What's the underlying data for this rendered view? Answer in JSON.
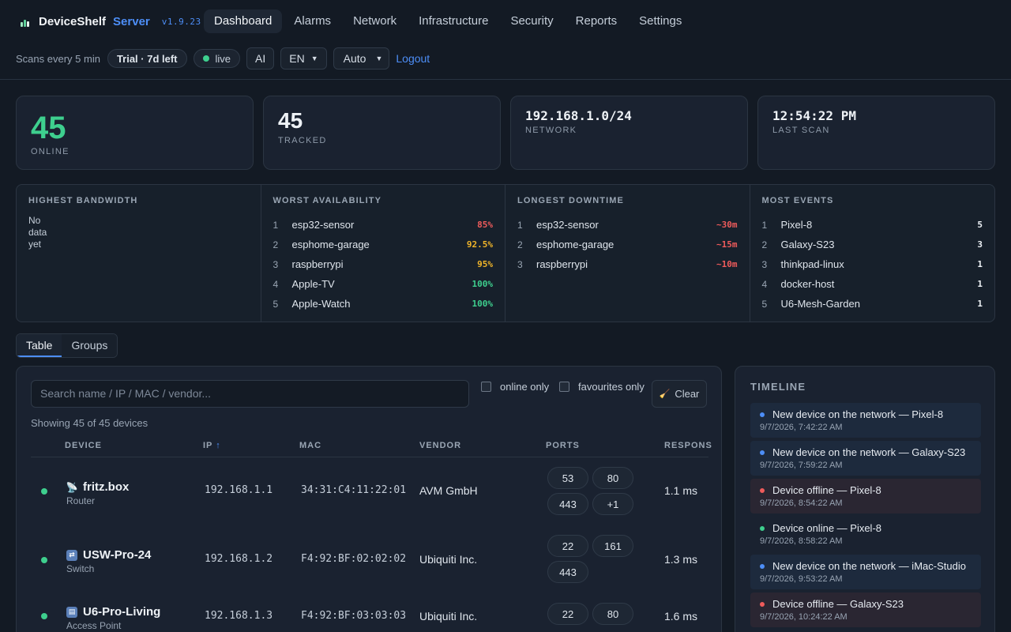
{
  "brand": {
    "name": "DeviceShelf",
    "product": "Server",
    "version": "v1.9.23"
  },
  "nav": [
    "Dashboard",
    "Alarms",
    "Network",
    "Infrastructure",
    "Security",
    "Reports",
    "Settings"
  ],
  "subbar": {
    "scan_note": "Scans every 5 min",
    "trial": "Trial · 7d left",
    "live": "live",
    "ai": "AI",
    "language": "EN",
    "theme": "Auto",
    "logout": "Logout"
  },
  "stats": {
    "online": {
      "value": "45",
      "label": "ONLINE"
    },
    "tracked": {
      "value": "45",
      "label": "TRACKED"
    },
    "network": {
      "value": "192.168.1.0/24",
      "label": "NETWORK"
    },
    "last_scan": {
      "value": "12:54:22 PM",
      "label": "LAST SCAN"
    }
  },
  "boards": {
    "bandwidth": {
      "title": "HIGHEST BANDWIDTH",
      "empty": "No data yet"
    },
    "availability": {
      "title": "WORST AVAILABILITY",
      "rows": [
        {
          "rank": "1",
          "name": "esp32-sensor",
          "value": "85%",
          "tone": "red"
        },
        {
          "rank": "2",
          "name": "esphome-garage",
          "value": "92.5%",
          "tone": "amber"
        },
        {
          "rank": "3",
          "name": "raspberrypi",
          "value": "95%",
          "tone": "amber"
        },
        {
          "rank": "4",
          "name": "Apple-TV",
          "value": "100%",
          "tone": "green"
        },
        {
          "rank": "5",
          "name": "Apple-Watch",
          "value": "100%",
          "tone": "green"
        }
      ]
    },
    "downtime": {
      "title": "LONGEST DOWNTIME",
      "rows": [
        {
          "rank": "1",
          "name": "esp32-sensor",
          "value": "~30m",
          "tone": "red"
        },
        {
          "rank": "2",
          "name": "esphome-garage",
          "value": "~15m",
          "tone": "red"
        },
        {
          "rank": "3",
          "name": "raspberrypi",
          "value": "~10m",
          "tone": "red"
        }
      ]
    },
    "events": {
      "title": "MOST EVENTS",
      "rows": [
        {
          "rank": "1",
          "name": "Pixel-8",
          "value": "5",
          "tone": "white"
        },
        {
          "rank": "2",
          "name": "Galaxy-S23",
          "value": "3",
          "tone": "white"
        },
        {
          "rank": "3",
          "name": "thinkpad-linux",
          "value": "1",
          "tone": "white"
        },
        {
          "rank": "4",
          "name": "docker-host",
          "value": "1",
          "tone": "white"
        },
        {
          "rank": "5",
          "name": "U6-Mesh-Garden",
          "value": "1",
          "tone": "white"
        }
      ]
    }
  },
  "view_tabs": [
    "Table",
    "Groups"
  ],
  "devices": {
    "search_placeholder": "Search name / IP / MAC / vendor...",
    "filter_online": "online only",
    "filter_favourites": "favourites only",
    "clear": "Clear",
    "showing": "Showing 45 of 45 devices",
    "columns": {
      "device": "DEVICE",
      "ip": "IP",
      "ip_sort": "↑",
      "mac": "MAC",
      "vendor": "VENDOR",
      "ports": "PORTS",
      "response": "RESPONS"
    },
    "rows": [
      {
        "name": "fritz.box",
        "type": "Router",
        "icon": "router-icon",
        "ip": "192.168.1.1",
        "mac": "34:31:C4:11:22:01",
        "vendor": "AVM GmbH",
        "ports": [
          "53",
          "80",
          "443",
          "+1"
        ],
        "response": "1.1 ms",
        "status": "online"
      },
      {
        "name": "USW-Pro-24",
        "type": "Switch",
        "icon": "switch-icon",
        "ip": "192.168.1.2",
        "mac": "F4:92:BF:02:02:02",
        "vendor": "Ubiquiti Inc.",
        "ports": [
          "22",
          "161",
          "443"
        ],
        "response": "1.3 ms",
        "status": "online"
      },
      {
        "name": "U6-Pro-Living",
        "type": "Access Point",
        "icon": "access-point-icon",
        "ip": "192.168.1.3",
        "mac": "F4:92:BF:03:03:03",
        "vendor": "Ubiquiti Inc.",
        "ports": [
          "22",
          "80"
        ],
        "response": "1.6 ms",
        "status": "online"
      }
    ]
  },
  "timeline": {
    "title": "TIMELINE",
    "items": [
      {
        "text": "New device on the network — Pixel-8",
        "time": "9/7/2026, 7:42:22 AM",
        "kind": "new"
      },
      {
        "text": "New device on the network — Galaxy-S23",
        "time": "9/7/2026, 7:59:22 AM",
        "kind": "new"
      },
      {
        "text": "Device offline — Pixel-8",
        "time": "9/7/2026, 8:54:22 AM",
        "kind": "off"
      },
      {
        "text": "Device online — Pixel-8",
        "time": "9/7/2026, 8:58:22 AM",
        "kind": "on"
      },
      {
        "text": "New device on the network — iMac-Studio",
        "time": "9/7/2026, 9:53:22 AM",
        "kind": "new"
      },
      {
        "text": "Device offline — Galaxy-S23",
        "time": "9/7/2026, 10:24:22 AM",
        "kind": "off"
      }
    ]
  },
  "colors": {
    "accent": "#4d8ef7",
    "online": "#3ecf8e",
    "warning": "#f0b429",
    "danger": "#ef5b5b",
    "background": "#131a24"
  }
}
